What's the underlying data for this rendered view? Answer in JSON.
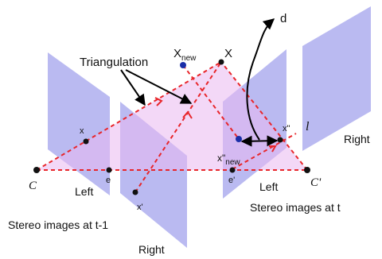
{
  "labels": {
    "triangulation": "Triangulation",
    "x_new_base": "X",
    "x_new_sub": "new",
    "X": "X",
    "d": "d",
    "l": "l",
    "x_left": "x",
    "e_left": "e",
    "x_prime": "x'",
    "x_dprime": "x\"",
    "x_dprime_new_base": "x\"",
    "x_dprime_new_sub": "new",
    "e_prime": "e'",
    "C": "C",
    "C_prime": "C'",
    "left_t1": "Left",
    "left_t": "Left",
    "right_t": "Right",
    "right_t1": "Right",
    "stereo_t1": "Stereo images at t-1",
    "stereo_t": "Stereo images at t"
  },
  "colors": {
    "plane_fill": "#8f8fe8",
    "triangle_fill": "#e9b8f0",
    "epipolar_line": "#e8262b",
    "point": "#111111",
    "new_point": "#1a2ea8",
    "arrow": "#000000"
  }
}
